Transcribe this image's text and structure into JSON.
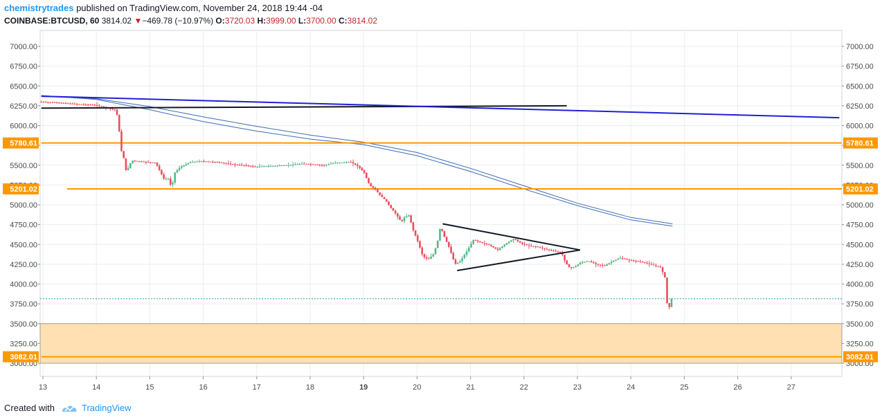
{
  "header": {
    "author": "chemistrytrades",
    "published_text": "published on TradingView.com, November 24, 2018 19:44 -04",
    "symbol": "COINBASE:BTCUSD, 60",
    "last": "3814.02",
    "change_arrow": "▼",
    "change": "−469.78 (−10.97%)",
    "o_label": "O:",
    "o_value": "3720.03",
    "h_label": "H:",
    "h_value": "3999.00",
    "l_label": "L:",
    "l_value": "3700.00",
    "c_label": "C:",
    "c_value": "3814.02"
  },
  "footer": {
    "created_with": "Created with",
    "brand": "TradingView",
    "logo_icon": "tradingview-logo-icon"
  },
  "colors": {
    "candle_up": "#53b987",
    "candle_down": "#eb4d5c",
    "level_line": "#ff9800",
    "level_label_bg": "#ff9800",
    "zone_fill": "#ffe0b2",
    "blue_trend": "#1f1fd6",
    "ma": "#3d6ab3",
    "grid": "#e9edf2",
    "last_price_dotted": "#26a69a"
  },
  "chart_data": {
    "type": "candlestick",
    "y_axis": {
      "min": 2950,
      "max": 7200,
      "ticks": [
        "7000.00",
        "6750.00",
        "6500.00",
        "6250.00",
        "6000.00",
        "5750.00",
        "5500.00",
        "5250.00",
        "5000.00",
        "4750.00",
        "4500.00",
        "4250.00",
        "4000.00",
        "3750.00",
        "3500.00",
        "3250.00",
        "3000.00"
      ],
      "tick_values": [
        7000,
        6750,
        6500,
        6250,
        6000,
        5750,
        5500,
        5250,
        5000,
        4750,
        4500,
        4250,
        4000,
        3750,
        3500,
        3250,
        3000
      ]
    },
    "x_axis": {
      "labels": [
        "13",
        "14",
        "15",
        "16",
        "17",
        "18",
        "19",
        "20",
        "21",
        "22",
        "23",
        "24",
        "25",
        "26",
        "27"
      ],
      "label_days": [
        13,
        14,
        15,
        16,
        17,
        18,
        19,
        20,
        21,
        22,
        23,
        24,
        25,
        26,
        27
      ],
      "bold_labels": [
        "19"
      ],
      "day_min": 12.97,
      "day_max": 27.9
    },
    "price_labels": [
      {
        "text": "5780.61",
        "value": 5780.61
      },
      {
        "text": "5201.02",
        "value": 5201.02
      },
      {
        "text": "3082.01",
        "value": 3082.01
      }
    ],
    "horizontal_levels": [
      {
        "value": 5780.61,
        "from_day": 12.97
      },
      {
        "value": 5201.02,
        "from_day": 13.45
      },
      {
        "value": 3082.01,
        "from_day": 12.97
      }
    ],
    "zone": {
      "top": 3500,
      "bottom": 3000
    },
    "last_price": 3814.02,
    "price_path": [
      [
        12.97,
        6300
      ],
      [
        13.3,
        6290
      ],
      [
        13.7,
        6270
      ],
      [
        14.0,
        6260
      ],
      [
        14.15,
        6240
      ],
      [
        14.25,
        6220
      ],
      [
        14.4,
        6200
      ],
      [
        14.45,
        6080
      ],
      [
        14.5,
        5700
      ],
      [
        14.55,
        5600
      ],
      [
        14.6,
        5420
      ],
      [
        14.65,
        5480
      ],
      [
        14.7,
        5560
      ],
      [
        14.8,
        5550
      ],
      [
        15.0,
        5540
      ],
      [
        15.15,
        5530
      ],
      [
        15.25,
        5400
      ],
      [
        15.3,
        5330
      ],
      [
        15.4,
        5330
      ],
      [
        15.45,
        5200
      ],
      [
        15.5,
        5400
      ],
      [
        15.6,
        5470
      ],
      [
        15.8,
        5540
      ],
      [
        16.0,
        5550
      ],
      [
        16.3,
        5540
      ],
      [
        16.6,
        5510
      ],
      [
        16.8,
        5500
      ],
      [
        17.0,
        5480
      ],
      [
        17.3,
        5490
      ],
      [
        17.6,
        5500
      ],
      [
        17.9,
        5520
      ],
      [
        18.1,
        5510
      ],
      [
        18.3,
        5500
      ],
      [
        18.5,
        5530
      ],
      [
        18.8,
        5540
      ],
      [
        18.95,
        5480
      ],
      [
        19.05,
        5410
      ],
      [
        19.15,
        5250
      ],
      [
        19.25,
        5200
      ],
      [
        19.35,
        5120
      ],
      [
        19.45,
        5060
      ],
      [
        19.55,
        4960
      ],
      [
        19.65,
        4880
      ],
      [
        19.75,
        4780
      ],
      [
        19.8,
        4840
      ],
      [
        19.9,
        4870
      ],
      [
        19.95,
        4710
      ],
      [
        20.05,
        4550
      ],
      [
        20.15,
        4350
      ],
      [
        20.25,
        4310
      ],
      [
        20.35,
        4380
      ],
      [
        20.42,
        4520
      ],
      [
        20.48,
        4730
      ],
      [
        20.55,
        4600
      ],
      [
        20.65,
        4450
      ],
      [
        20.75,
        4250
      ],
      [
        20.85,
        4290
      ],
      [
        20.95,
        4390
      ],
      [
        21.1,
        4560
      ],
      [
        21.25,
        4520
      ],
      [
        21.4,
        4490
      ],
      [
        21.55,
        4430
      ],
      [
        21.7,
        4510
      ],
      [
        21.85,
        4570
      ],
      [
        22.0,
        4510
      ],
      [
        22.15,
        4480
      ],
      [
        22.3,
        4470
      ],
      [
        22.45,
        4440
      ],
      [
        22.6,
        4420
      ],
      [
        22.75,
        4390
      ],
      [
        22.82,
        4270
      ],
      [
        22.9,
        4200
      ],
      [
        23.0,
        4220
      ],
      [
        23.1,
        4270
      ],
      [
        23.25,
        4290
      ],
      [
        23.4,
        4250
      ],
      [
        23.55,
        4230
      ],
      [
        23.7,
        4290
      ],
      [
        23.85,
        4330
      ],
      [
        24.0,
        4300
      ],
      [
        24.15,
        4290
      ],
      [
        24.3,
        4270
      ],
      [
        24.45,
        4240
      ],
      [
        24.6,
        4210
      ],
      [
        24.68,
        4080
      ],
      [
        24.72,
        3760
      ],
      [
        24.76,
        3700
      ],
      [
        24.78,
        3814
      ]
    ],
    "trend_lines": [
      {
        "name": "",
        "color": "#131722",
        "width": 2,
        "points": [
          [
            12.97,
            6220
          ],
          [
            22.8,
            6250
          ]
        ]
      },
      {
        "name": "",
        "color": "#1f1fd6",
        "width": 2,
        "points": [
          [
            12.97,
            6370
          ],
          [
            27.9,
            6100
          ]
        ]
      },
      {
        "name": "",
        "color": "#131722",
        "width": 2,
        "points": [
          [
            20.48,
            4760
          ],
          [
            23.05,
            4430
          ],
          [
            20.75,
            4170
          ]
        ]
      }
    ],
    "ma_lines": [
      {
        "points": [
          [
            12.97,
            6370
          ],
          [
            14.0,
            6340
          ],
          [
            15.0,
            6240
          ],
          [
            16.0,
            6110
          ],
          [
            17.0,
            5990
          ],
          [
            18.0,
            5880
          ],
          [
            19.0,
            5790
          ],
          [
            20.0,
            5660
          ],
          [
            21.0,
            5460
          ],
          [
            22.0,
            5240
          ],
          [
            23.0,
            5020
          ],
          [
            24.0,
            4840
          ],
          [
            24.78,
            4760
          ]
        ]
      },
      {
        "points": [
          [
            12.97,
            6380
          ],
          [
            14.0,
            6330
          ],
          [
            15.0,
            6200
          ],
          [
            16.0,
            6050
          ],
          [
            17.0,
            5930
          ],
          [
            18.0,
            5830
          ],
          [
            19.0,
            5760
          ],
          [
            20.0,
            5620
          ],
          [
            21.0,
            5420
          ],
          [
            22.0,
            5200
          ],
          [
            23.0,
            4990
          ],
          [
            24.0,
            4810
          ],
          [
            24.78,
            4730
          ]
        ]
      }
    ]
  }
}
